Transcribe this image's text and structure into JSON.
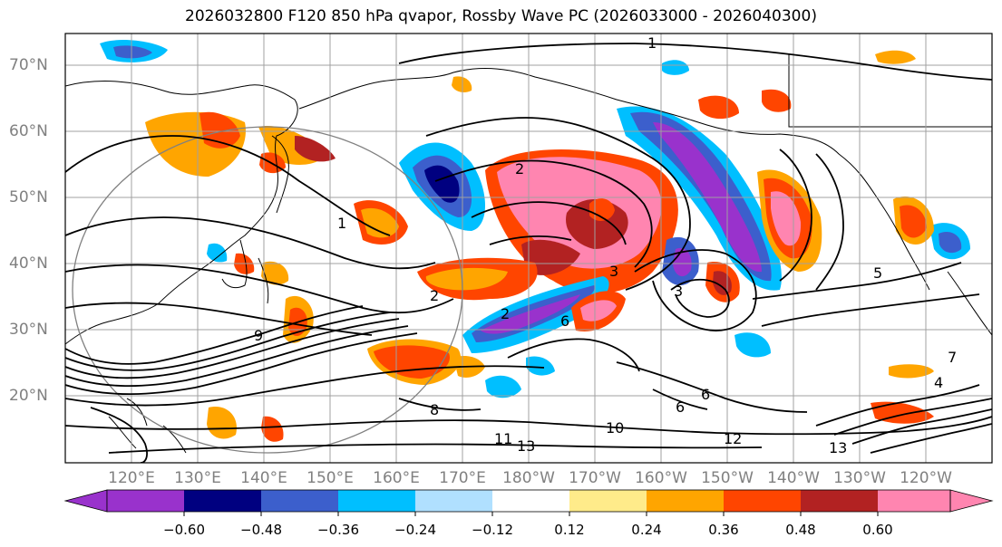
{
  "title": "2026032800 F120 850 hPa qvapor, Rossby Wave PC (2026033000 - 2026040300)",
  "lat_labels": [
    "70°N",
    "60°N",
    "50°N",
    "40°N",
    "30°N",
    "20°N"
  ],
  "lon_labels": [
    "120°E",
    "130°E",
    "140°E",
    "150°E",
    "160°E",
    "170°E",
    "180°W",
    "170°W",
    "160°W",
    "150°W",
    "140°W",
    "130°W",
    "120°W"
  ],
  "contour_labels": [
    "1",
    "1",
    "2",
    "2",
    "2",
    "3",
    "3",
    "4",
    "5",
    "6",
    "6",
    "6",
    "7",
    "8",
    "9",
    "10",
    "11",
    "12",
    "13",
    "13"
  ],
  "colorbar": {
    "ticks": [
      "−0.60",
      "−0.48",
      "−0.36",
      "−0.24",
      "−0.12",
      "0.12",
      "0.24",
      "0.36",
      "0.48",
      "0.60"
    ],
    "colors": [
      "#9932cc",
      "#000080",
      "#3c5fcc",
      "#00bfff",
      "#b0e0ff",
      "#ffffff",
      "#ffeb8a",
      "#ffa500",
      "#ff4500",
      "#b22222",
      "#ff85b0"
    ]
  }
}
